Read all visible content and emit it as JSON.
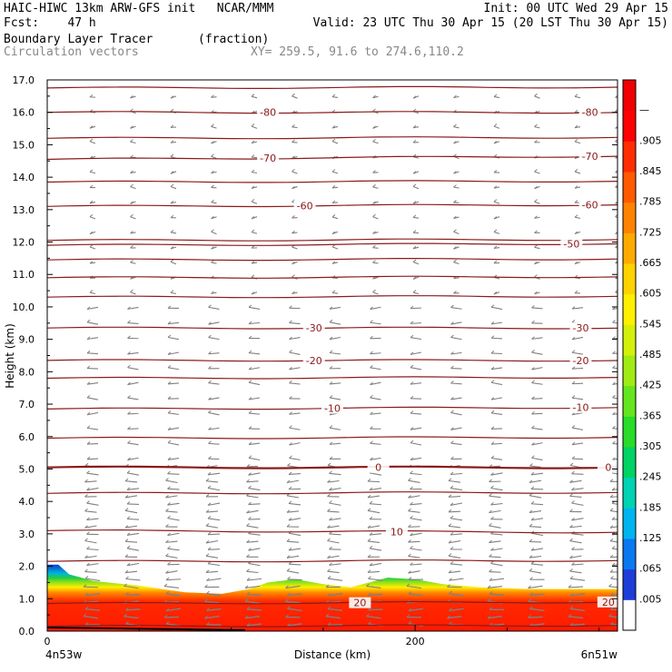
{
  "header": {
    "line1_left": "HAIC-HIWC 13km ARW-GFS init   NCAR/MMM",
    "line1_right": "Init: 00 UTC Wed 29 Apr 15",
    "line2_left": "Fcst:    47 h",
    "line2_right": "Valid: 23 UTC Thu 30 Apr 15 (20 LST Thu 30 Apr 15)",
    "field_name": "Boundary Layer Tracer",
    "field_units": "(fraction)",
    "vector_name": "Circulation vectors",
    "xy_text": "XY= 259.5, 91.6 to 274.6,110.2"
  },
  "colors": {
    "contour": "#8b1a1a",
    "vector": "#808080",
    "bl_blue": "#0a3fd0",
    "bl_green": "#33cc33",
    "bl_yellow": "#ffee00",
    "bl_orange": "#ff8800",
    "bl_red": "#ff1a00"
  },
  "chart_data": {
    "type": "heatmap",
    "title": "Boundary Layer Tracer",
    "units": "(fraction)",
    "xlabel": "Distance (km)",
    "ylabel": "Height (km)",
    "xlim": [
      0,
      310
    ],
    "ylim": [
      0,
      17
    ],
    "x_ticks": [
      {
        "value": 0,
        "label": "0"
      },
      {
        "value": 200,
        "label": "200"
      }
    ],
    "x_endpoint_labels": [
      "4n53w",
      "6n51w"
    ],
    "y_ticks": [
      0.0,
      1.0,
      2.0,
      3.0,
      4.0,
      5.0,
      6.0,
      7.0,
      8.0,
      9.0,
      10.0,
      11.0,
      12.0,
      13.0,
      14.0,
      15.0,
      16.0,
      17.0
    ],
    "y_tick_labels": [
      "0.0",
      "1.0",
      "2.0",
      "3.0",
      "4.0",
      "5.0",
      "6.0",
      "7.0",
      "8.0",
      "9.0",
      "10.0",
      "11.0",
      "12.0",
      "13.0",
      "14.0",
      "15.0",
      "16.0",
      "17.0"
    ],
    "colorbar": {
      "labels": [
        ".005",
        ".065",
        ".125",
        ".185",
        ".245",
        ".305",
        ".365",
        ".425",
        ".485",
        ".545",
        ".605",
        ".665",
        ".725",
        ".785",
        ".845",
        ".905",
        "—"
      ],
      "colors": [
        "#ffffff",
        "#1e3cd8",
        "#0a78f0",
        "#00b4f0",
        "#00d2b4",
        "#00d264",
        "#28dc28",
        "#64e61e",
        "#a0eb14",
        "#d2f00a",
        "#fff000",
        "#ffd200",
        "#ffaa00",
        "#ff8200",
        "#ff5a00",
        "#ff2d00",
        "#ff0000",
        "#f00000"
      ]
    },
    "boundary_layer_top": {
      "x": [
        0,
        6,
        12,
        25,
        50,
        75,
        95,
        110,
        120,
        135,
        150,
        165,
        185,
        200,
        215,
        235,
        260,
        285,
        310
      ],
      "height": [
        2.05,
        2.05,
        1.75,
        1.55,
        1.4,
        1.2,
        1.15,
        1.3,
        1.5,
        1.6,
        1.45,
        1.35,
        1.65,
        1.6,
        1.45,
        1.35,
        1.3,
        1.3,
        1.3
      ]
    },
    "temperature_contours": [
      {
        "label": "-80",
        "height": [
          16.0,
          16.0
        ],
        "label_positions": [
          120,
          295
        ]
      },
      {
        "label": "-70",
        "height": [
          14.55,
          14.65
        ],
        "label_positions": [
          120,
          295
        ]
      },
      {
        "label": "-60",
        "height": [
          13.1,
          13.15
        ],
        "label_positions": [
          140,
          295
        ]
      },
      {
        "label": "-50",
        "height": [
          11.9,
          11.95
        ],
        "label_positions": [
          285
        ]
      },
      {
        "label": "-30",
        "height": [
          9.35,
          9.35
        ],
        "label_positions": [
          145,
          290
        ]
      },
      {
        "label": "-20",
        "height": [
          8.35,
          8.35
        ],
        "label_positions": [
          145,
          290
        ]
      },
      {
        "label": "-10",
        "height": [
          6.85,
          6.9
        ],
        "label_positions": [
          155,
          290
        ]
      },
      {
        "label": "0",
        "height": [
          5.05,
          5.05
        ],
        "label_positions": [
          180,
          305
        ]
      },
      {
        "label": "10",
        "height": [
          3.1,
          3.05
        ],
        "label_positions": [
          190
        ]
      },
      {
        "label": "20",
        "height": [
          0.85,
          0.9
        ],
        "label_positions": [
          170,
          305
        ]
      }
    ],
    "unlabeled_contours": [
      16.75,
      15.2,
      13.85,
      12.05,
      11.45,
      10.9,
      10.3,
      7.8,
      5.95,
      4.25,
      2.15,
      0.15
    ],
    "grid": false,
    "vectors": "circulation vectors, mostly pointing left"
  }
}
